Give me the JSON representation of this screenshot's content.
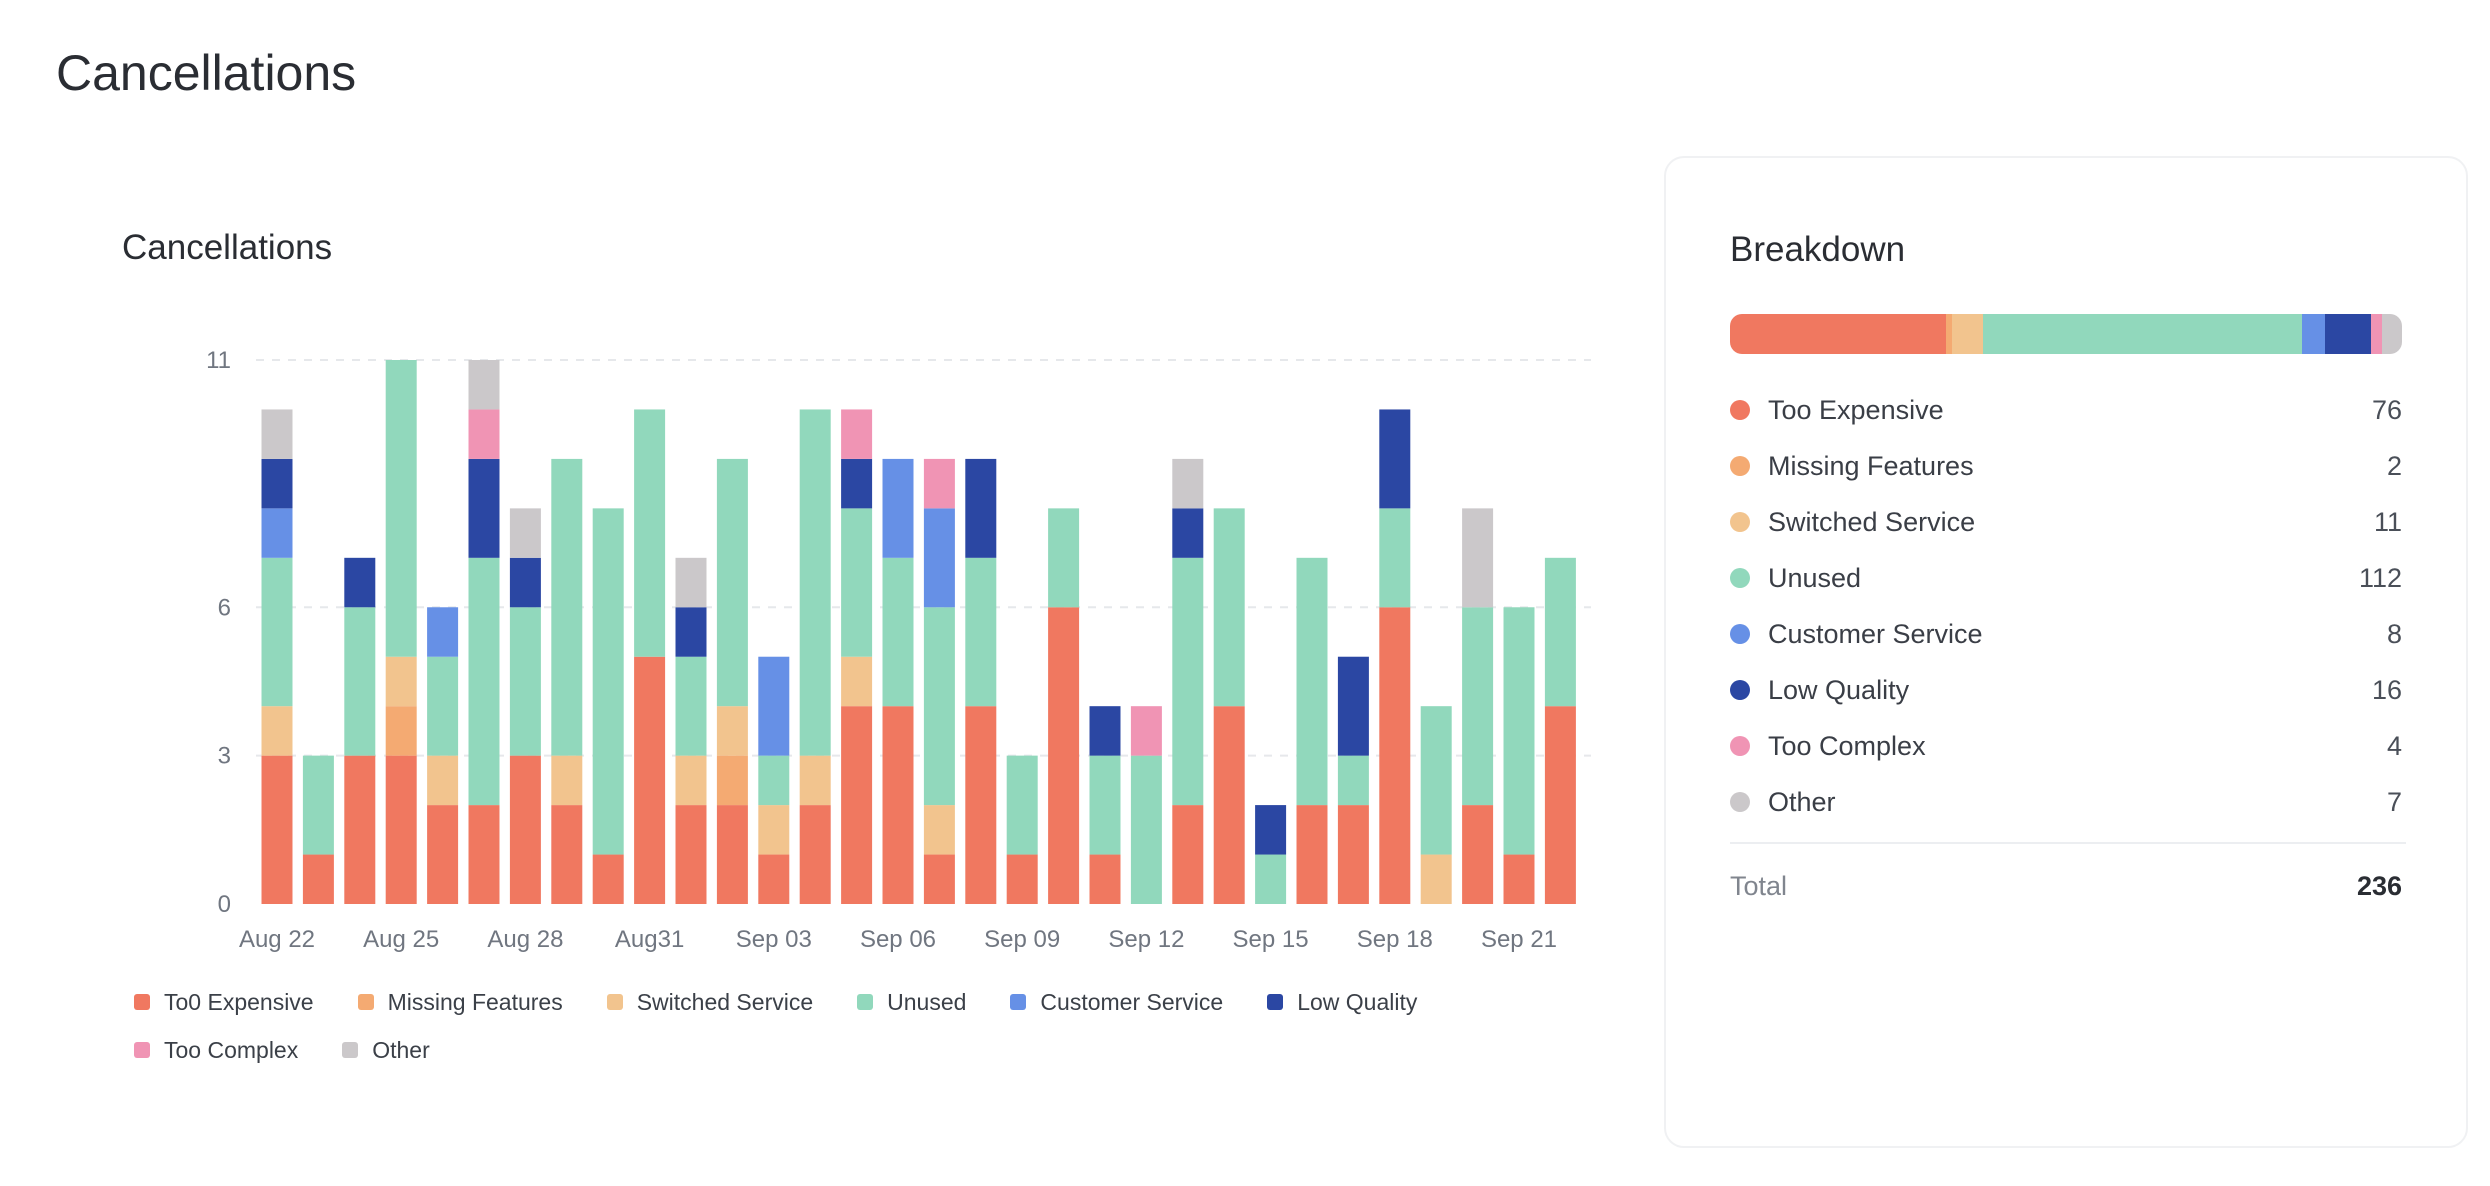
{
  "page": {
    "title": "Cancellations"
  },
  "chart_card": {
    "title": "Cancellations"
  },
  "chart_data": {
    "type": "bar",
    "stacked": true,
    "title": "Cancellations",
    "xlabel": "",
    "ylabel": "",
    "ylim": [
      0,
      11
    ],
    "yticks": [
      0,
      3,
      6,
      11
    ],
    "grid": true,
    "legend_position": "bottom-left",
    "x_tick_labels": [
      "Aug 22",
      "Aug 25",
      "Aug 28",
      "Aug31",
      "Sep 03",
      "Sep 06",
      "Sep 09",
      "Sep 12",
      "Sep 15",
      "Sep 18",
      "Sep 21"
    ],
    "categories": [
      "Aug 22",
      "Aug 23",
      "Aug 24",
      "Aug 25",
      "Aug 26",
      "Aug 27",
      "Aug 28",
      "Aug 29",
      "Aug 30",
      "Aug 31",
      "Sep 01",
      "Sep 02",
      "Sep 03",
      "Sep 04",
      "Sep 05",
      "Sep 06",
      "Sep 07",
      "Sep 08",
      "Sep 09",
      "Sep 10",
      "Sep 11",
      "Sep 12",
      "Sep 13",
      "Sep 14",
      "Sep 15",
      "Sep 16",
      "Sep 17",
      "Sep 18",
      "Sep 19",
      "Sep 20",
      "Sep 21",
      "Sep 22"
    ],
    "series": [
      {
        "name": "To0 Expensive",
        "color": "#f07860",
        "values": [
          3,
          1,
          3,
          3,
          2,
          2,
          3,
          2,
          1,
          5,
          2,
          2,
          1,
          2,
          4,
          4,
          1,
          4,
          1,
          6,
          1,
          0,
          2,
          4,
          0,
          2,
          2,
          6,
          0,
          2,
          1,
          4
        ]
      },
      {
        "name": "Missing Features",
        "color": "#f4aa72",
        "values": [
          0,
          0,
          0,
          1,
          0,
          0,
          0,
          0,
          0,
          0,
          0,
          1,
          0,
          0,
          0,
          0,
          0,
          0,
          0,
          0,
          0,
          0,
          0,
          0,
          0,
          0,
          0,
          0,
          0,
          0,
          0,
          0
        ]
      },
      {
        "name": "Switched Service",
        "color": "#f2c48e",
        "values": [
          1,
          0,
          0,
          1,
          1,
          0,
          0,
          1,
          0,
          0,
          1,
          1,
          1,
          1,
          1,
          0,
          1,
          0,
          0,
          0,
          0,
          0,
          0,
          0,
          0,
          0,
          0,
          0,
          1,
          0,
          0,
          0
        ]
      },
      {
        "name": "Unused",
        "color": "#91d8bc",
        "values": [
          3,
          2,
          3,
          6,
          2,
          5,
          3,
          6,
          7,
          5,
          2,
          5,
          1,
          7,
          3,
          3,
          4,
          3,
          2,
          2,
          2,
          3,
          5,
          4,
          1,
          5,
          1,
          2,
          3,
          4,
          5,
          3
        ]
      },
      {
        "name": "Customer Service",
        "color": "#6690e6",
        "values": [
          1,
          0,
          0,
          0,
          1,
          0,
          0,
          0,
          0,
          0,
          0,
          0,
          2,
          0,
          0,
          2,
          2,
          0,
          0,
          0,
          0,
          0,
          0,
          0,
          0,
          0,
          0,
          0,
          0,
          0,
          0,
          0
        ]
      },
      {
        "name": "Low Quality",
        "color": "#2b47a3",
        "values": [
          1,
          0,
          1,
          0,
          0,
          2,
          1,
          0,
          0,
          0,
          1,
          0,
          0,
          0,
          1,
          0,
          0,
          2,
          0,
          0,
          1,
          0,
          1,
          0,
          1,
          0,
          2,
          2,
          0,
          0,
          0,
          0
        ]
      },
      {
        "name": "Too Complex",
        "color": "#f094b4",
        "values": [
          0,
          0,
          0,
          0,
          0,
          1,
          0,
          0,
          0,
          0,
          0,
          0,
          0,
          0,
          1,
          0,
          1,
          0,
          0,
          0,
          0,
          1,
          0,
          0,
          0,
          0,
          0,
          0,
          0,
          0,
          0,
          0
        ]
      },
      {
        "name": "Other",
        "color": "#cbc8ca",
        "values": [
          1,
          0,
          0,
          0,
          0,
          1,
          1,
          0,
          0,
          0,
          1,
          0,
          0,
          0,
          0,
          0,
          0,
          0,
          0,
          0,
          0,
          0,
          1,
          0,
          0,
          0,
          0,
          0,
          0,
          2,
          0,
          0
        ]
      }
    ]
  },
  "legend": [
    {
      "label": "To0 Expensive",
      "color": "#f07860"
    },
    {
      "label": "Missing Features",
      "color": "#f4aa72"
    },
    {
      "label": "Switched Service",
      "color": "#f2c48e"
    },
    {
      "label": "Unused",
      "color": "#91d8bc"
    },
    {
      "label": "Customer Service",
      "color": "#6690e6"
    },
    {
      "label": "Low Quality",
      "color": "#2b47a3"
    },
    {
      "label": "Too Complex",
      "color": "#f094b4"
    },
    {
      "label": "Other",
      "color": "#cbc8ca"
    }
  ],
  "breakdown": {
    "title": "Breakdown",
    "items": [
      {
        "label": "Too Expensive",
        "value": "76",
        "color": "#f07860"
      },
      {
        "label": "Missing Features",
        "value": "2",
        "color": "#f4aa72"
      },
      {
        "label": "Switched Service",
        "value": "11",
        "color": "#f2c48e"
      },
      {
        "label": "Unused",
        "value": "112",
        "color": "#91d8bc"
      },
      {
        "label": "Customer Service",
        "value": "8",
        "color": "#6690e6"
      },
      {
        "label": "Low Quality",
        "value": "16",
        "color": "#2b47a3"
      },
      {
        "label": "Too Complex",
        "value": "4",
        "color": "#f094b4"
      },
      {
        "label": "Other",
        "value": "7",
        "color": "#cbc8ca"
      }
    ],
    "total_label": "Total",
    "total_value": "236"
  }
}
